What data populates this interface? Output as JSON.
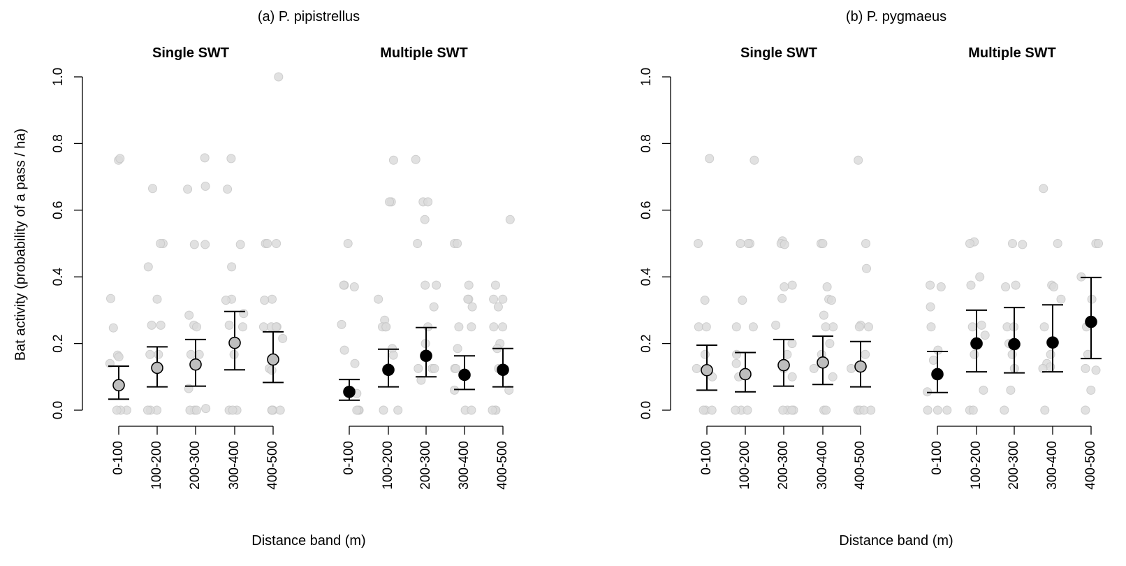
{
  "chart_data": [
    {
      "type": "scatter",
      "panel_title": "(a) P. pipistrellus",
      "ylabel": "Bat activity (probability of a pass / ha)",
      "xlabel": "Distance band (m)",
      "ylim": [
        0,
        1
      ],
      "yticks": [
        "0.0",
        "0.2",
        "0.4",
        "0.6",
        "0.8",
        "1.0"
      ],
      "groups": [
        {
          "name": "Single SWT",
          "style": "grey",
          "categories": [
            "0-100",
            "100-200",
            "200-300",
            "300-400",
            "400-500"
          ],
          "mean": [
            0.075,
            0.127,
            0.137,
            0.202,
            0.152
          ],
          "lower": [
            0.033,
            0.07,
            0.072,
            0.121,
            0.083
          ],
          "upper": [
            0.132,
            0.19,
            0.212,
            0.296,
            0.235
          ],
          "points": [
            [
              0.75,
              0.755,
              0.335,
              0.247,
              0.165,
              0.16,
              0.14,
              0.0,
              0.0,
              0.0
            ],
            [
              0.665,
              0.5,
              0.5,
              0.43,
              0.333,
              0.255,
              0.255,
              0.167,
              0.167,
              0.0,
              0.0,
              0.0
            ],
            [
              0.757,
              0.672,
              0.663,
              0.497,
              0.497,
              0.285,
              0.255,
              0.25,
              0.167,
              0.167,
              0.065,
              0.005,
              0.0,
              0.0,
              0.0
            ],
            [
              0.755,
              0.663,
              0.497,
              0.43,
              0.333,
              0.33,
              0.29,
              0.255,
              0.25,
              0.167,
              0.0,
              0.0,
              0.0
            ],
            [
              1.0,
              0.5,
              0.5,
              0.5,
              0.333,
              0.33,
              0.25,
              0.25,
              0.25,
              0.25,
              0.215,
              0.125,
              0.12,
              0.0,
              0.0,
              0.0,
              0.0
            ]
          ]
        },
        {
          "name": "Multiple SWT",
          "style": "black",
          "categories": [
            "0-100",
            "100-200",
            "200-300",
            "300-400",
            "400-500"
          ],
          "mean": [
            0.055,
            0.121,
            0.163,
            0.106,
            0.121
          ],
          "lower": [
            0.03,
            0.07,
            0.1,
            0.062,
            0.07
          ],
          "upper": [
            0.092,
            0.183,
            0.248,
            0.163,
            0.185
          ],
          "points": [
            [
              0.5,
              0.375,
              0.375,
              0.37,
              0.257,
              0.18,
              0.14,
              0.05,
              0.0,
              0.0,
              0.0
            ],
            [
              0.75,
              0.625,
              0.625,
              0.333,
              0.27,
              0.25,
              0.25,
              0.25,
              0.185,
              0.165,
              0.0,
              0.0
            ],
            [
              0.752,
              0.625,
              0.625,
              0.572,
              0.5,
              0.375,
              0.375,
              0.31,
              0.25,
              0.2,
              0.125,
              0.125,
              0.125,
              0.09
            ],
            [
              0.5,
              0.5,
              0.375,
              0.333,
              0.333,
              0.31,
              0.25,
              0.25,
              0.185,
              0.125,
              0.125,
              0.06,
              0.0,
              0.0
            ],
            [
              0.572,
              0.375,
              0.333,
              0.333,
              0.31,
              0.25,
              0.25,
              0.2,
              0.185,
              0.125,
              0.06,
              0.0,
              0.0,
              0.0
            ]
          ]
        }
      ]
    },
    {
      "type": "scatter",
      "panel_title": "(b) P. pygmaeus",
      "ylabel": "",
      "xlabel": "Distance band (m)",
      "ylim": [
        0,
        1
      ],
      "yticks": [
        "0.0",
        "0.2",
        "0.4",
        "0.6",
        "0.8",
        "1.0"
      ],
      "groups": [
        {
          "name": "Single SWT",
          "style": "grey",
          "categories": [
            "0-100",
            "100-200",
            "200-300",
            "300-400",
            "400-500"
          ],
          "mean": [
            0.12,
            0.108,
            0.135,
            0.143,
            0.131
          ],
          "lower": [
            0.06,
            0.055,
            0.072,
            0.077,
            0.07
          ],
          "upper": [
            0.195,
            0.173,
            0.212,
            0.222,
            0.206
          ],
          "points": [
            [
              0.755,
              0.5,
              0.33,
              0.25,
              0.25,
              0.167,
              0.125,
              0.1,
              0.0,
              0.0,
              0.0
            ],
            [
              0.75,
              0.5,
              0.5,
              0.5,
              0.33,
              0.25,
              0.25,
              0.167,
              0.14,
              0.1,
              0.0,
              0.0,
              0.0
            ],
            [
              0.508,
              0.5,
              0.497,
              0.375,
              0.37,
              0.335,
              0.255,
              0.2,
              0.167,
              0.125,
              0.1,
              0.0,
              0.0,
              0.0,
              0.0
            ],
            [
              0.5,
              0.5,
              0.37,
              0.333,
              0.33,
              0.285,
              0.25,
              0.25,
              0.2,
              0.167,
              0.125,
              0.1,
              0.0,
              0.0
            ],
            [
              0.75,
              0.5,
              0.425,
              0.255,
              0.25,
              0.25,
              0.167,
              0.125,
              0.0,
              0.0,
              0.0,
              0.0
            ]
          ]
        },
        {
          "name": "Multiple SWT",
          "style": "black",
          "categories": [
            "0-100",
            "100-200",
            "200-300",
            "300-400",
            "400-500"
          ],
          "mean": [
            0.108,
            0.2,
            0.198,
            0.203,
            0.265
          ],
          "lower": [
            0.053,
            0.115,
            0.112,
            0.115,
            0.155
          ],
          "upper": [
            0.176,
            0.3,
            0.308,
            0.316,
            0.398
          ],
          "points": [
            [
              0.375,
              0.37,
              0.31,
              0.25,
              0.18,
              0.15,
              0.055,
              0.0,
              0.0,
              0.0
            ],
            [
              0.505,
              0.5,
              0.4,
              0.375,
              0.255,
              0.25,
              0.225,
              0.2,
              0.167,
              0.06,
              0.0,
              0.0
            ],
            [
              0.5,
              0.497,
              0.375,
              0.37,
              0.25,
              0.25,
              0.2,
              0.167,
              0.125,
              0.06,
              0.0
            ],
            [
              0.665,
              0.5,
              0.375,
              0.37,
              0.333,
              0.25,
              0.167,
              0.14,
              0.13,
              0.125,
              0.0
            ],
            [
              0.5,
              0.5,
              0.4,
              0.333,
              0.25,
              0.167,
              0.125,
              0.12,
              0.06,
              0.0
            ]
          ]
        }
      ]
    }
  ]
}
